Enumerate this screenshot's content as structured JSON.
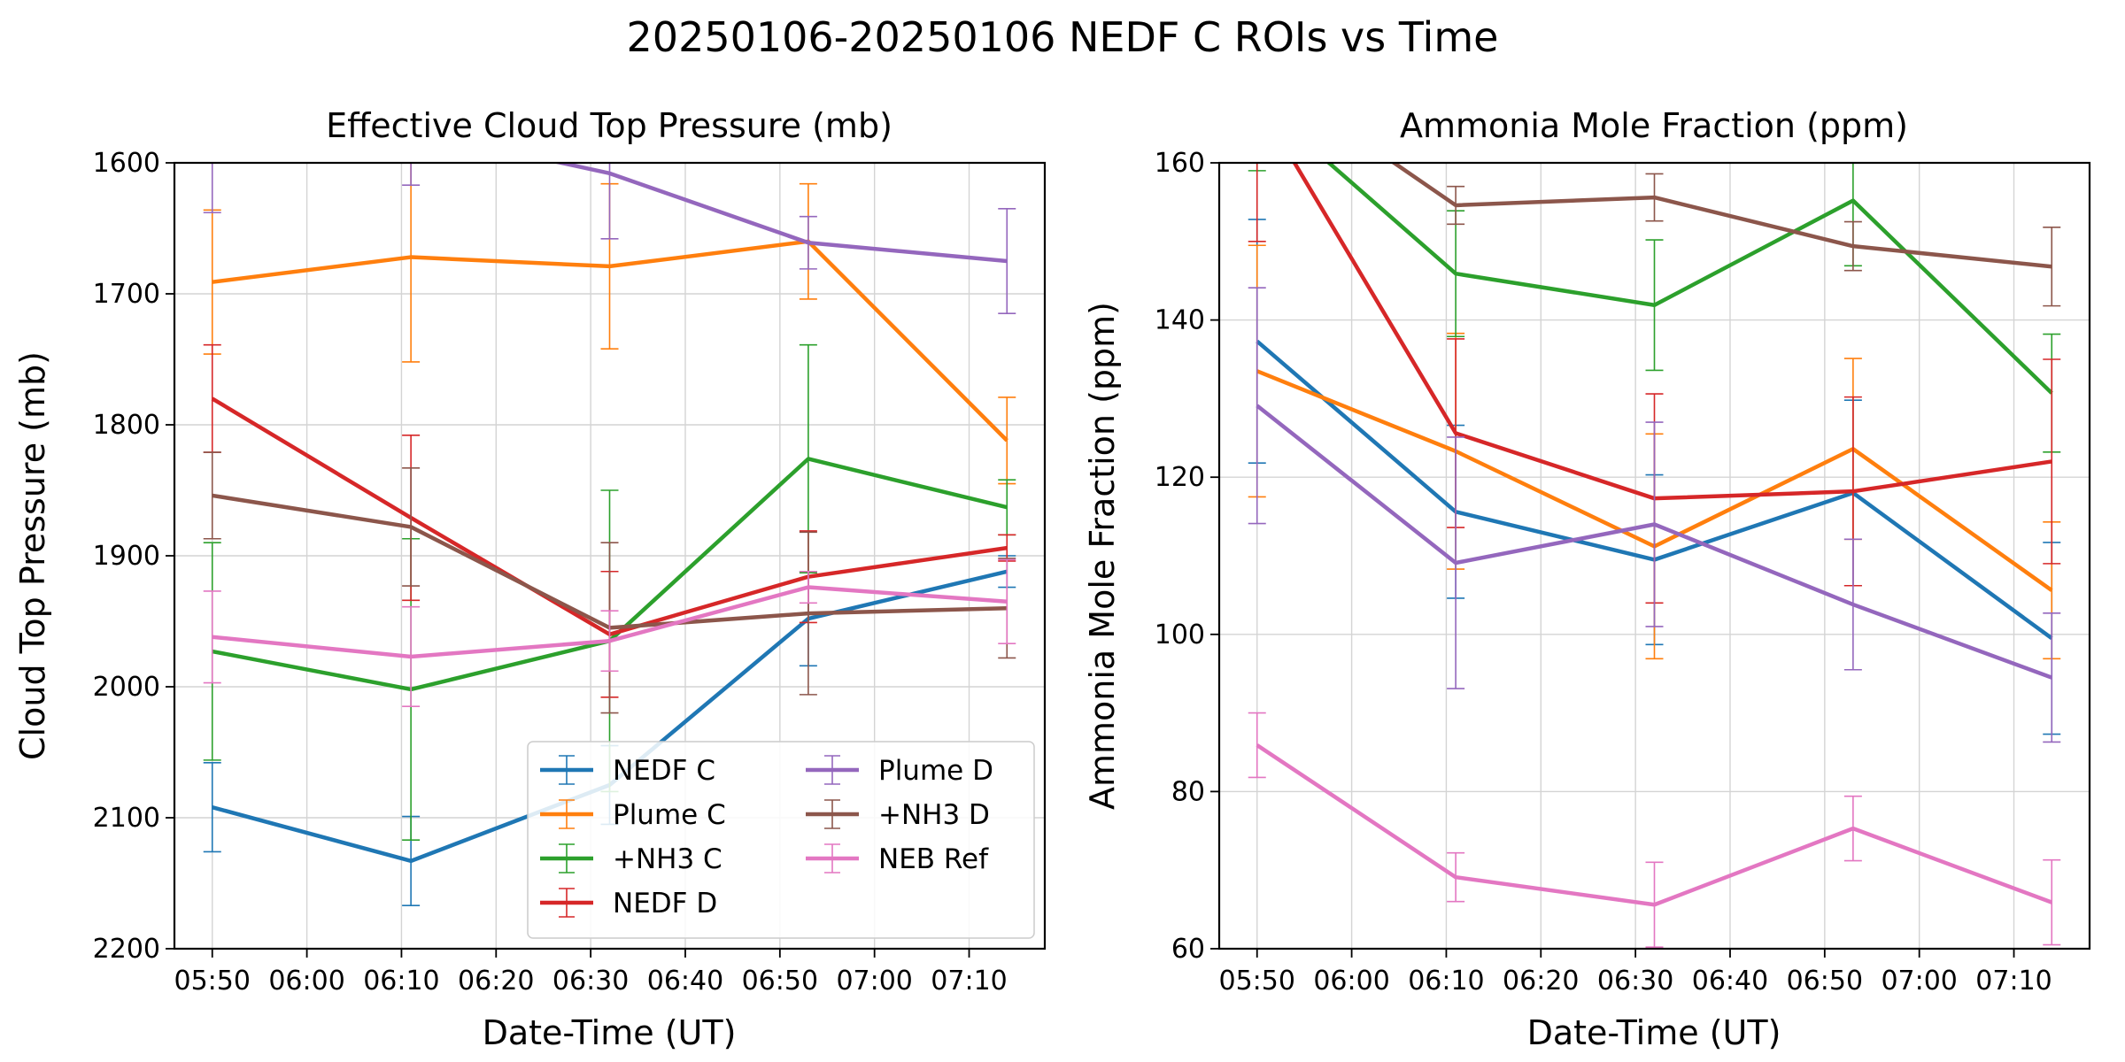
{
  "figure": {
    "suptitle": "20250106-20250106 NEDF C ROIs vs Time"
  },
  "series_styles": [
    {
      "name": "NEDF C",
      "color": "#1f77b4"
    },
    {
      "name": "Plume C",
      "color": "#ff7f0e"
    },
    {
      "name": "+NH3 C",
      "color": "#2ca02c"
    },
    {
      "name": "NEDF D",
      "color": "#d62728"
    },
    {
      "name": "Plume D",
      "color": "#9467bd"
    },
    {
      "name": "+NH3 D",
      "color": "#8c564b"
    },
    {
      "name": "NEB Ref",
      "color": "#e377c2"
    }
  ],
  "chart_data": [
    {
      "type": "line",
      "title": "Effective Cloud Top Pressure (mb)",
      "xlabel": "Date-Time (UT)",
      "ylabel": "Cloud Top Pressure (mb)",
      "x": [
        "05:50",
        "06:11",
        "06:32",
        "06:53",
        "07:14"
      ],
      "xlim": [
        "05:46",
        "07:18"
      ],
      "ylim": [
        2200,
        1600
      ],
      "y_inverted": true,
      "yticks": [
        1600,
        1700,
        1800,
        1900,
        2000,
        2100,
        2200
      ],
      "xticks": [
        "05:50",
        "06:00",
        "06:10",
        "06:20",
        "06:30",
        "06:40",
        "06:50",
        "07:00",
        "07:10"
      ],
      "grid": true,
      "legend": {
        "position": "lower-right",
        "ncol": 2
      },
      "series": [
        {
          "name": "NEDF C",
          "values": [
            2092,
            2133,
            2075,
            1948,
            1912
          ],
          "err": [
            34,
            34,
            30,
            36,
            12
          ]
        },
        {
          "name": "Plume C",
          "values": [
            1691,
            1672,
            1679,
            1660,
            1812
          ],
          "err": [
            55,
            80,
            63,
            44,
            33
          ]
        },
        {
          "name": "+NH3 C",
          "values": [
            1973,
            2002,
            1965,
            1826,
            1863
          ],
          "err": [
            83,
            115,
            115,
            87,
            21
          ]
        },
        {
          "name": "NEDF D",
          "values": [
            1780,
            1871,
            1960,
            1916,
            1894
          ],
          "err": [
            41,
            63,
            48,
            35,
            10
          ]
        },
        {
          "name": "Plume D",
          "values": [
            1590,
            1575,
            1608,
            1661,
            1675
          ],
          "err": [
            48,
            42,
            50,
            20,
            40
          ]
        },
        {
          "name": "+NH3 D",
          "values": [
            1854,
            1878,
            1955,
            1944,
            1940
          ],
          "err": [
            33,
            45,
            65,
            62,
            38
          ]
        },
        {
          "name": "NEB Ref",
          "values": [
            1962,
            1977,
            1965,
            1924,
            1935
          ],
          "err": [
            35,
            38,
            23,
            12,
            32
          ]
        }
      ]
    },
    {
      "type": "line",
      "title": "Ammonia Mole Fraction (ppm)",
      "xlabel": "Date-Time (UT)",
      "ylabel": "Ammonia Mole Fraction (ppm)",
      "x": [
        "05:50",
        "06:11",
        "06:32",
        "06:53",
        "07:14"
      ],
      "xlim": [
        "05:46",
        "07:18"
      ],
      "ylim": [
        60,
        160
      ],
      "yticks": [
        60,
        80,
        100,
        120,
        140,
        160
      ],
      "xticks": [
        "05:50",
        "06:00",
        "06:10",
        "06:20",
        "06:30",
        "06:40",
        "06:50",
        "07:00",
        "07:10"
      ],
      "grid": true,
      "series": [
        {
          "name": "NEDF C",
          "values": [
            137.3,
            115.6,
            109.5,
            118.0,
            99.5
          ],
          "err": [
            15.5,
            11.0,
            10.8,
            11.8,
            12.2
          ]
        },
        {
          "name": "Plume C",
          "values": [
            133.5,
            123.3,
            111.2,
            123.6,
            105.6
          ],
          "err": [
            16.0,
            15.0,
            14.3,
            11.5,
            8.7
          ]
        },
        {
          "name": "+NH3 C",
          "values": [
            168.0,
            145.9,
            141.9,
            155.2,
            130.7
          ],
          "err": [
            9.0,
            8.0,
            8.3,
            8.3,
            7.5
          ]
        },
        {
          "name": "NEDF D",
          "values": [
            168.0,
            125.6,
            117.3,
            118.2,
            122.0
          ],
          "err": [
            18.0,
            12.0,
            13.3,
            12.0,
            13.0
          ]
        },
        {
          "name": "Plume D",
          "values": [
            129.1,
            109.1,
            114.0,
            103.8,
            94.5
          ],
          "err": [
            15.0,
            16.0,
            13.0,
            8.3,
            8.2
          ]
        },
        {
          "name": "+NH3 D",
          "values": [
            172.0,
            154.6,
            155.6,
            149.4,
            146.8
          ],
          "err": [
            5.0,
            2.4,
            3.0,
            3.1,
            5.0
          ]
        },
        {
          "name": "NEB Ref",
          "values": [
            85.9,
            69.1,
            65.6,
            75.3,
            65.9
          ],
          "err": [
            4.1,
            3.1,
            5.4,
            4.1,
            5.4
          ]
        }
      ]
    }
  ]
}
